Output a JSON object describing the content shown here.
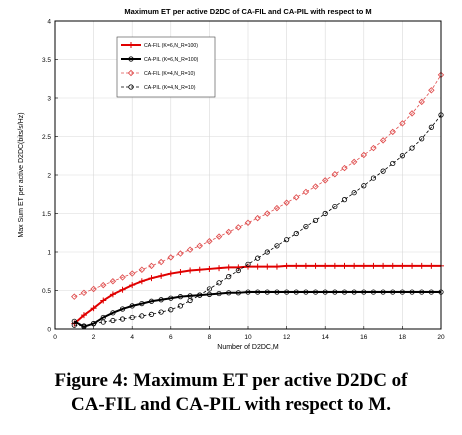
{
  "caption": {
    "line1": "Figure 4: Maximum ET per active D2DC of",
    "line2": "CA-FIL and CA-PIL with respect to M."
  },
  "chart_data": {
    "type": "line",
    "title": "Maximum ET per active D2DC of CA-FIL and CA-PIL with respect to M",
    "xlabel": "Number of D2DC,M",
    "ylabel": "Max Sum ET per active D2DC(bits/s/Hz)",
    "xlim": [
      0,
      20
    ],
    "ylim": [
      0,
      4
    ],
    "xticks": [
      0,
      2,
      4,
      6,
      8,
      10,
      12,
      14,
      16,
      18,
      20
    ],
    "yticks": [
      0,
      0.5,
      1,
      1.5,
      2,
      2.5,
      3,
      3.5,
      4
    ],
    "grid": true,
    "legend_position": "top-left",
    "series": [
      {
        "name": "CA-FIL (K=6,N_R=100)",
        "color": "#e00000",
        "style": "solid",
        "marker": "plus",
        "x": [
          1,
          1.5,
          2,
          2.5,
          3,
          3.5,
          4,
          4.5,
          5,
          5.5,
          6,
          6.5,
          7,
          7.5,
          8,
          8.5,
          9,
          9.5,
          10,
          10.5,
          11,
          11.5,
          12,
          12.5,
          13,
          13.5,
          14,
          14.5,
          15,
          15.5,
          16,
          16.5,
          17,
          17.5,
          18,
          18.5,
          19,
          19.5,
          20
        ],
        "y": [
          0.07,
          0.18,
          0.27,
          0.37,
          0.45,
          0.51,
          0.57,
          0.62,
          0.66,
          0.69,
          0.72,
          0.74,
          0.76,
          0.77,
          0.78,
          0.79,
          0.8,
          0.8,
          0.81,
          0.81,
          0.81,
          0.81,
          0.82,
          0.82,
          0.82,
          0.82,
          0.82,
          0.82,
          0.82,
          0.82,
          0.82,
          0.82,
          0.82,
          0.82,
          0.82,
          0.82,
          0.82,
          0.82,
          0.82
        ]
      },
      {
        "name": "CA-PIL (K=6,N_R=100)",
        "color": "#000000",
        "style": "solid",
        "marker": "circle",
        "x": [
          1,
          1.5,
          2,
          2.5,
          3,
          3.5,
          4,
          4.5,
          5,
          5.5,
          6,
          6.5,
          7,
          7.5,
          8,
          8.5,
          9,
          9.5,
          10,
          10.5,
          11,
          11.5,
          12,
          12.5,
          13,
          13.5,
          14,
          14.5,
          15,
          15.5,
          16,
          16.5,
          17,
          17.5,
          18,
          18.5,
          19,
          19.5,
          20
        ],
        "y": [
          0.1,
          0.03,
          0.07,
          0.15,
          0.21,
          0.26,
          0.3,
          0.33,
          0.36,
          0.38,
          0.4,
          0.42,
          0.43,
          0.44,
          0.45,
          0.46,
          0.47,
          0.47,
          0.48,
          0.48,
          0.48,
          0.48,
          0.48,
          0.48,
          0.48,
          0.48,
          0.48,
          0.48,
          0.48,
          0.48,
          0.48,
          0.48,
          0.48,
          0.48,
          0.48,
          0.48,
          0.48,
          0.48,
          0.48
        ]
      },
      {
        "name": "CA-FIL (K=4,N_R=10)",
        "color": "#e05050",
        "style": "dashed",
        "marker": "diamond",
        "x": [
          1,
          1.5,
          2,
          2.5,
          3,
          3.5,
          4,
          4.5,
          5,
          5.5,
          6,
          6.5,
          7,
          7.5,
          8,
          8.5,
          9,
          9.5,
          10,
          10.5,
          11,
          11.5,
          12,
          12.5,
          13,
          13.5,
          14,
          14.5,
          15,
          15.5,
          16,
          16.5,
          17,
          17.5,
          18,
          18.5,
          19,
          19.5,
          20
        ],
        "y": [
          0.42,
          0.47,
          0.52,
          0.57,
          0.62,
          0.67,
          0.72,
          0.77,
          0.82,
          0.87,
          0.93,
          0.98,
          1.03,
          1.08,
          1.14,
          1.2,
          1.26,
          1.32,
          1.38,
          1.44,
          1.5,
          1.57,
          1.64,
          1.71,
          1.78,
          1.85,
          1.93,
          2.01,
          2.09,
          2.17,
          2.26,
          2.35,
          2.45,
          2.56,
          2.67,
          2.8,
          2.95,
          3.1,
          3.3
        ]
      },
      {
        "name": "CA-PIL (K=4,N_R=10)",
        "color": "#000000",
        "style": "dashed",
        "marker": "circle",
        "x": [
          1,
          1.5,
          2,
          2.5,
          3,
          3.5,
          4,
          4.5,
          5,
          5.5,
          6,
          6.5,
          7,
          7.5,
          8,
          8.5,
          9,
          9.5,
          10,
          10.5,
          11,
          11.5,
          12,
          12.5,
          13,
          13.5,
          14,
          14.5,
          15,
          15.5,
          16,
          16.5,
          17,
          17.5,
          18,
          18.5,
          19,
          19.5,
          20
        ],
        "y": [
          0.05,
          0.04,
          0.07,
          0.09,
          0.11,
          0.13,
          0.15,
          0.17,
          0.19,
          0.22,
          0.25,
          0.3,
          0.37,
          0.44,
          0.52,
          0.6,
          0.68,
          0.76,
          0.84,
          0.92,
          1.0,
          1.08,
          1.16,
          1.24,
          1.33,
          1.41,
          1.5,
          1.59,
          1.68,
          1.77,
          1.86,
          1.96,
          2.05,
          2.15,
          2.25,
          2.35,
          2.47,
          2.62,
          2.78
        ]
      }
    ]
  }
}
